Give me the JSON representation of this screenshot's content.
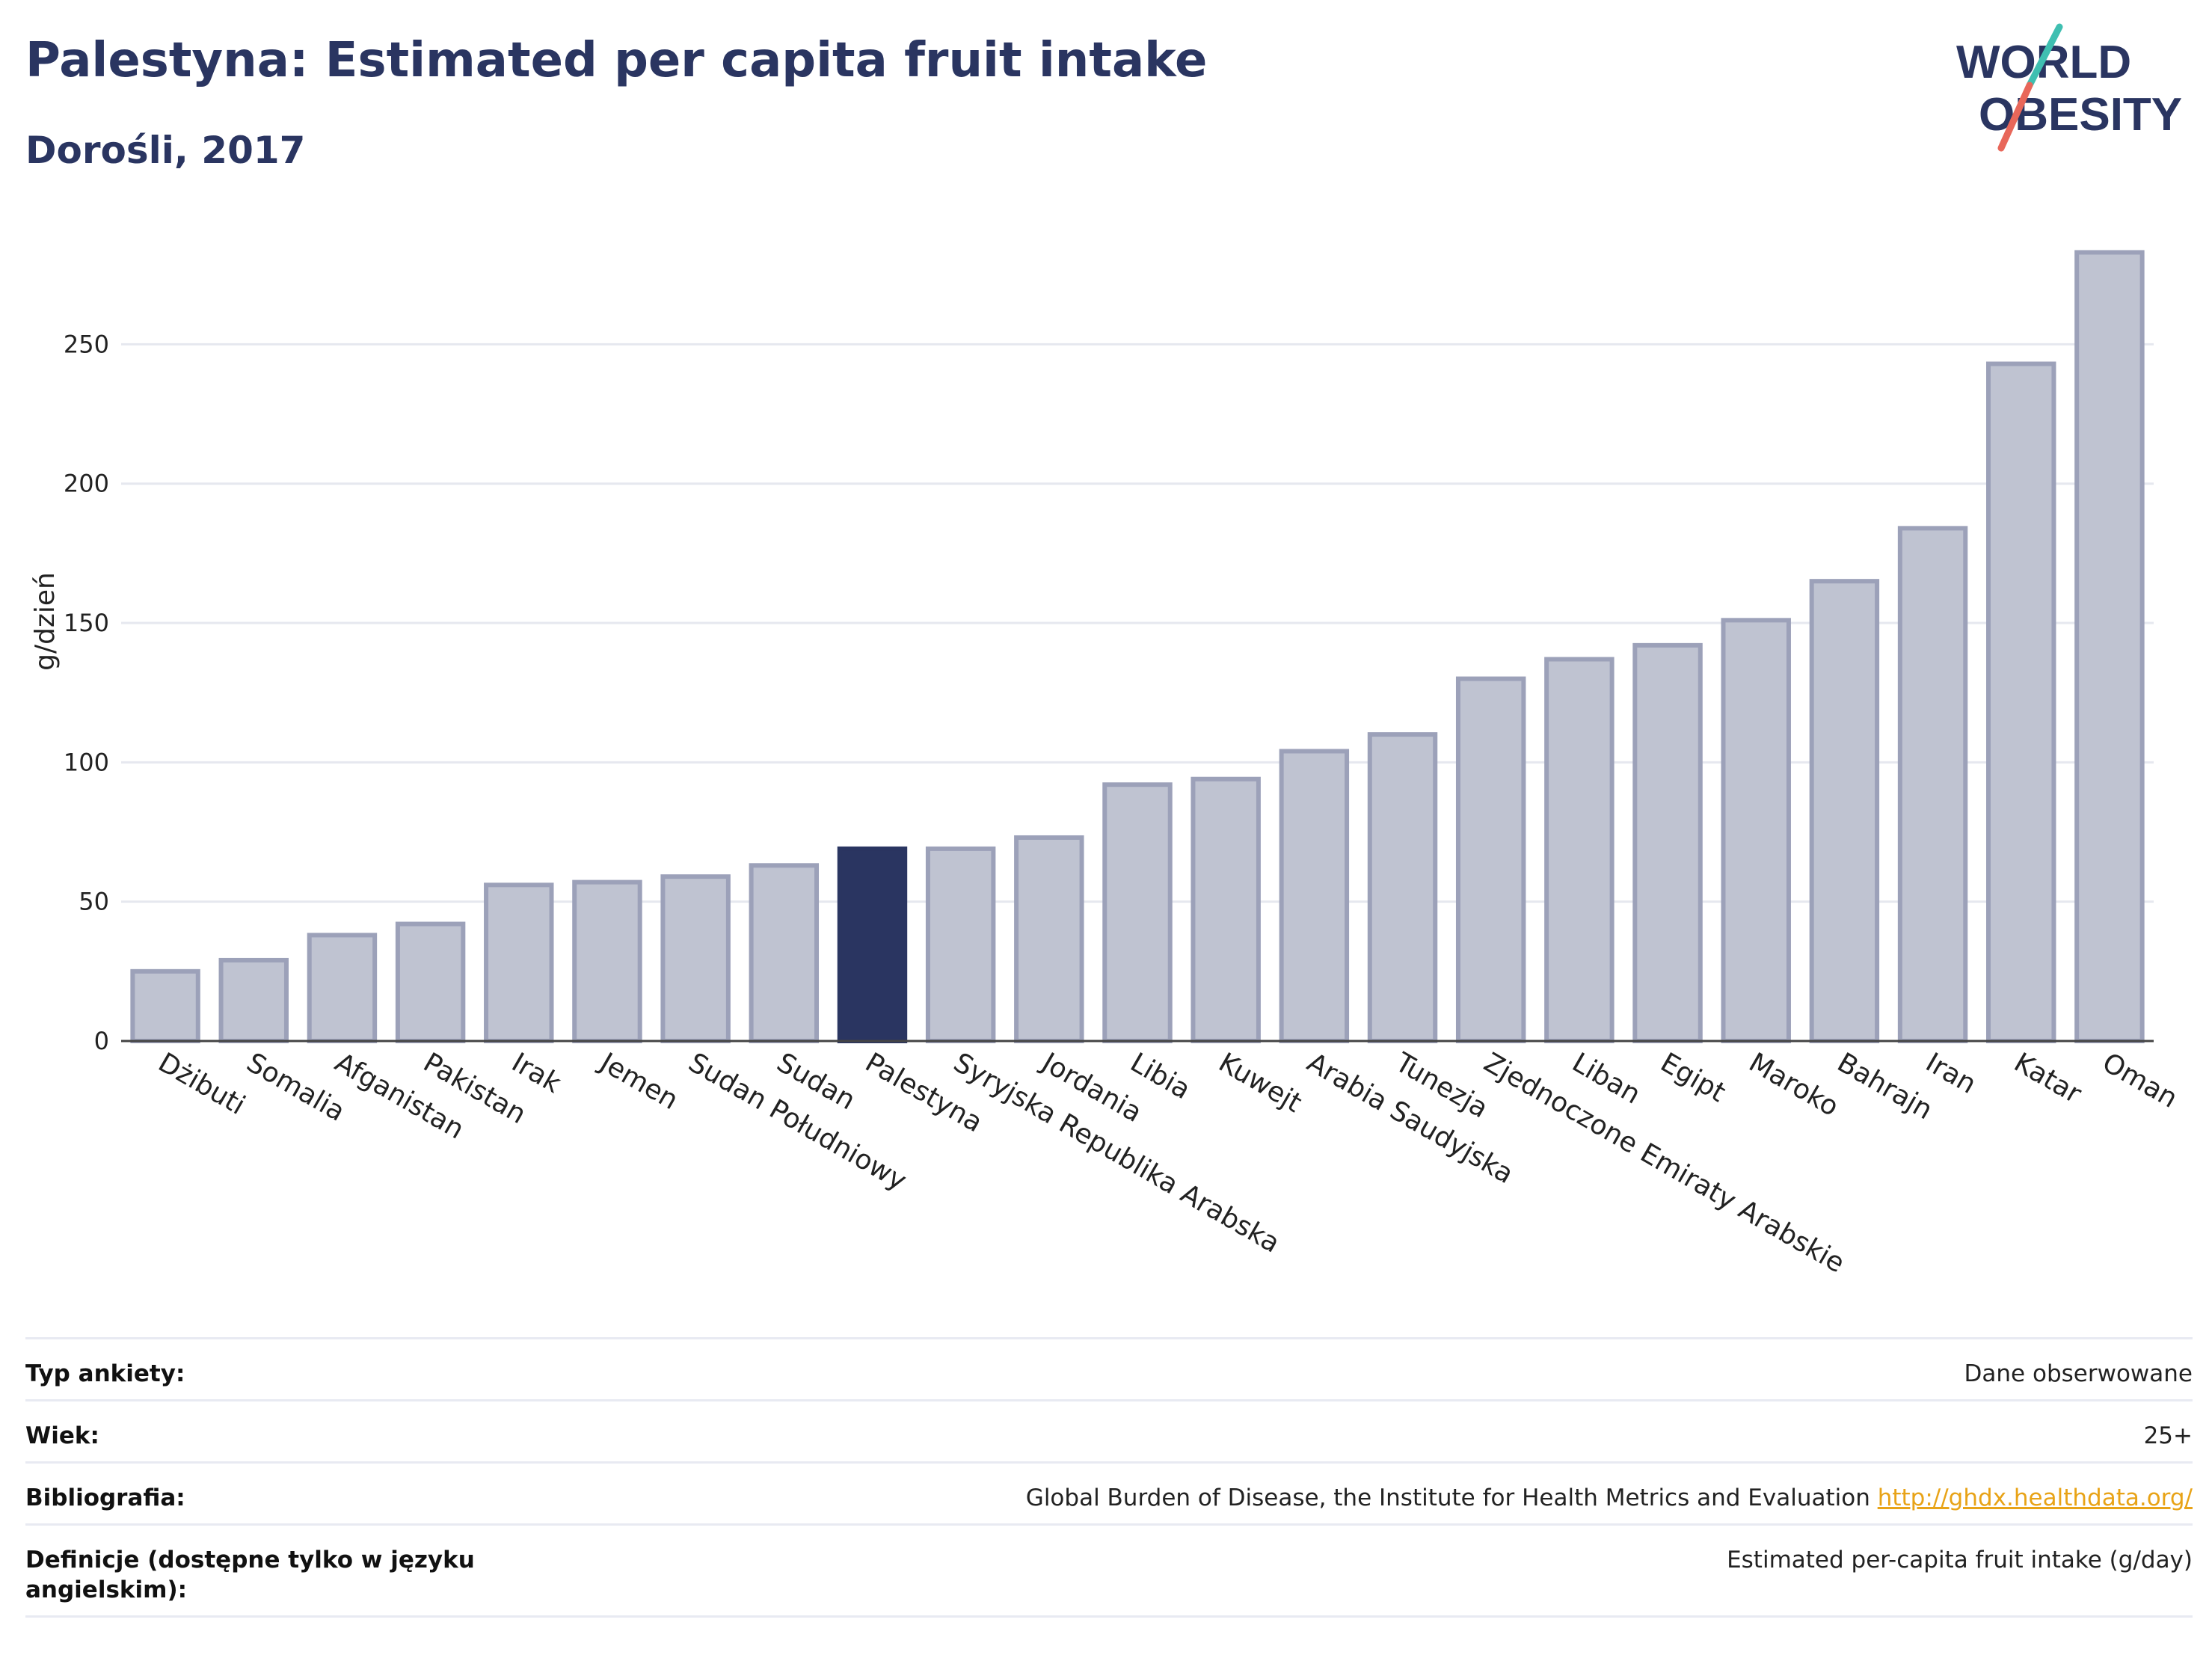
{
  "header": {
    "title": "Palestyna: Estimated per capita fruit intake",
    "subtitle": "Dorośli, 2017"
  },
  "logo": {
    "line1": "WORLD",
    "line2": "OBESITY",
    "slash_colors": [
      "#3fbfb1",
      "#e8675a"
    ]
  },
  "colors": {
    "bar_default": "#bfc3d1",
    "bar_border": "#9ca1b9",
    "bar_highlight": "#2a3561",
    "grid": "#e6e8ef",
    "axis_text": "#222222"
  },
  "chart_data": {
    "type": "bar",
    "title": "Palestyna: Estimated per capita fruit intake",
    "subtitle": "Dorośli, 2017",
    "ylabel": "g/dzień",
    "xlabel": "",
    "ylim": [
      0,
      285
    ],
    "yticks": [
      0,
      50,
      100,
      150,
      200,
      250
    ],
    "grid": true,
    "highlight": "Palestyna",
    "categories": [
      "Dżibuti",
      "Somalia",
      "Afganistan",
      "Pakistan",
      "Irak",
      "Jemen",
      "Sudan Południowy",
      "Sudan",
      "Palestyna",
      "Syryjska Republika Arabska",
      "Jordania",
      "Libia",
      "Kuwejt",
      "Arabia Saudyjska",
      "Tunezja",
      "Zjednoczone Emiraty Arabskie",
      "Liban",
      "Egipt",
      "Maroko",
      "Bahrajn",
      "Iran",
      "Katar",
      "Oman"
    ],
    "values": [
      25,
      29,
      38,
      42,
      56,
      57,
      59,
      63,
      69,
      69,
      73,
      92,
      94,
      104,
      110,
      130,
      137,
      142,
      151,
      165,
      184,
      243,
      283
    ]
  },
  "meta": {
    "rows": [
      {
        "label": "Typ ankiety:",
        "value": "Dane obserwowane"
      },
      {
        "label": "Wiek:",
        "value": "25+"
      },
      {
        "label": "Bibliografia:",
        "value": "Global Burden of Disease, the Institute for Health Metrics and Evaluation",
        "link": "http://ghdx.healthdata.org/"
      },
      {
        "label": "Definicje (dostępne tylko w języku angielskim):",
        "value": "Estimated per-capita fruit intake (g/day)"
      }
    ]
  }
}
